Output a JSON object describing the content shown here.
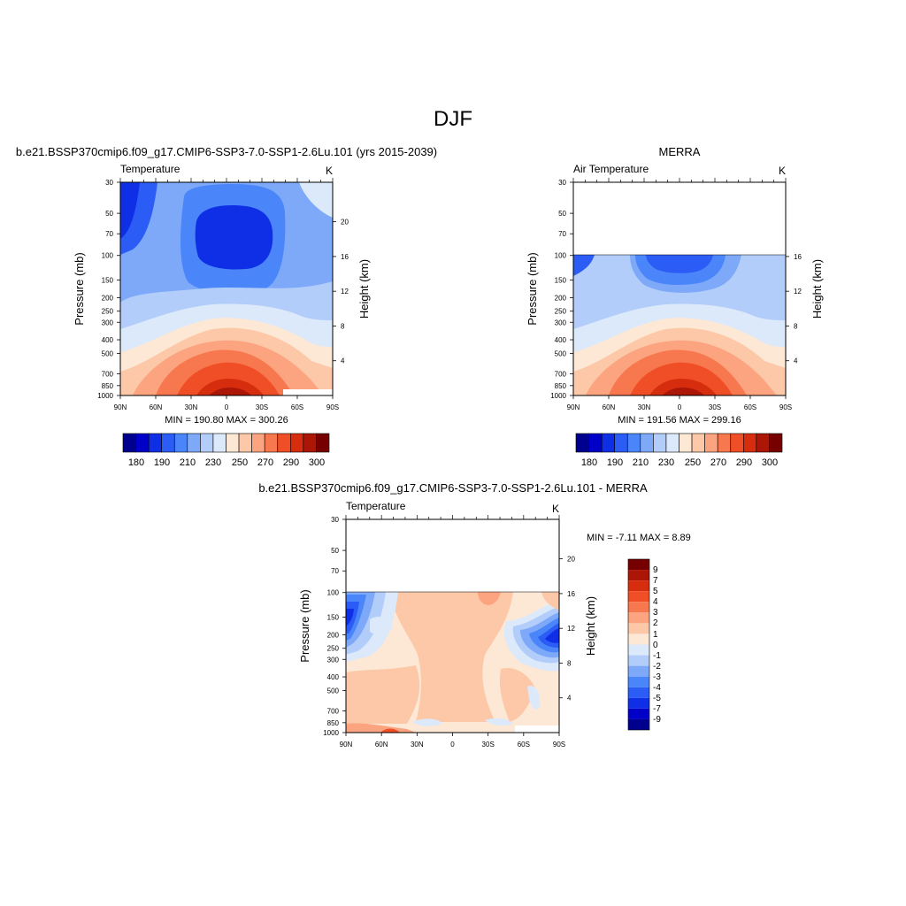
{
  "page_title": "DJF",
  "colors": {
    "temp_scale": [
      "#00008f",
      "#0000c8",
      "#0f2fe6",
      "#2b5cf5",
      "#4a86f9",
      "#7ea9f9",
      "#b2cdfa",
      "#dce9fb",
      "#fde8d6",
      "#fcc8a8",
      "#fca47f",
      "#f7784e",
      "#ef4e26",
      "#d62d0f",
      "#ac1607",
      "#760000"
    ],
    "diff_scale": [
      "#00008f",
      "#0000c8",
      "#0f2fe6",
      "#2b5cf5",
      "#4a86f9",
      "#7ea9f9",
      "#b2cdfa",
      "#dce9fb",
      "#fde8d6",
      "#fcc8a8",
      "#fca47f",
      "#f7784e",
      "#ef4e26",
      "#d62d0f",
      "#ac1607",
      "#760000"
    ]
  },
  "chart_data": [
    {
      "id": "model",
      "type": "heatmap",
      "title": "b.e21.BSSP370cmip6.f09_g17.CMIP6-SSP3-7.0-SSP1-2.6Lu.101 (yrs 2015-2039)",
      "left_label": "Temperature",
      "right_label": "K",
      "xlabel": "",
      "ylabel": "Pressure (mb)",
      "ylabel_right": "Height (km)",
      "x_ticks": [
        "90N",
        "60N",
        "30N",
        "0",
        "30S",
        "60S",
        "90S"
      ],
      "y_ticks": [
        "30",
        "50",
        "70",
        "100",
        "150",
        "200",
        "250",
        "300",
        "400",
        "500",
        "700",
        "850",
        "1000"
      ],
      "y_right_ticks": [
        "20",
        "16",
        "12",
        "8",
        "4"
      ],
      "ylim": [
        1000,
        30
      ],
      "stats": "MIN = 190.80  MAX = 300.26",
      "colorbar_labels": [
        "180",
        "190",
        "210",
        "230",
        "250",
        "270",
        "290",
        "300"
      ],
      "data_top_mb": 30
    },
    {
      "id": "obs",
      "type": "heatmap",
      "title": "MERRA",
      "left_label": "Air Temperature",
      "right_label": "K",
      "xlabel": "",
      "ylabel": "Pressure (mb)",
      "ylabel_right": "Height (km)",
      "x_ticks": [
        "90N",
        "60N",
        "30N",
        "0",
        "30S",
        "60S",
        "90S"
      ],
      "y_ticks": [
        "30",
        "50",
        "70",
        "100",
        "150",
        "200",
        "250",
        "300",
        "400",
        "500",
        "700",
        "850",
        "1000"
      ],
      "y_right_ticks": [
        "16",
        "12",
        "8",
        "4"
      ],
      "ylim": [
        1000,
        30
      ],
      "stats": "MIN = 191.56  MAX = 299.16",
      "colorbar_labels": [
        "180",
        "190",
        "210",
        "230",
        "250",
        "270",
        "290",
        "300"
      ],
      "data_top_mb": 100
    },
    {
      "id": "diff",
      "type": "heatmap",
      "title": "b.e21.BSSP370cmip6.f09_g17.CMIP6-SSP3-7.0-SSP1-2.6Lu.101 - MERRA",
      "left_label": "Temperature",
      "right_label": "K",
      "xlabel": "",
      "ylabel": "Pressure (mb)",
      "ylabel_right": "Height (km)",
      "x_ticks": [
        "90N",
        "60N",
        "30N",
        "0",
        "30S",
        "60S",
        "90S"
      ],
      "y_ticks": [
        "30",
        "50",
        "70",
        "100",
        "150",
        "200",
        "250",
        "300",
        "400",
        "500",
        "700",
        "850",
        "1000"
      ],
      "y_right_ticks": [
        "20",
        "16",
        "12",
        "8",
        "4"
      ],
      "ylim": [
        1000,
        30
      ],
      "stats": "MIN =  -7.11  MAX =   8.89",
      "colorbar_labels": [
        "9",
        "7",
        "5",
        "4",
        "3",
        "2",
        "1",
        "0",
        "-1",
        "-2",
        "-3",
        "-4",
        "-5",
        "-7",
        "-9"
      ],
      "data_top_mb": 100
    }
  ]
}
